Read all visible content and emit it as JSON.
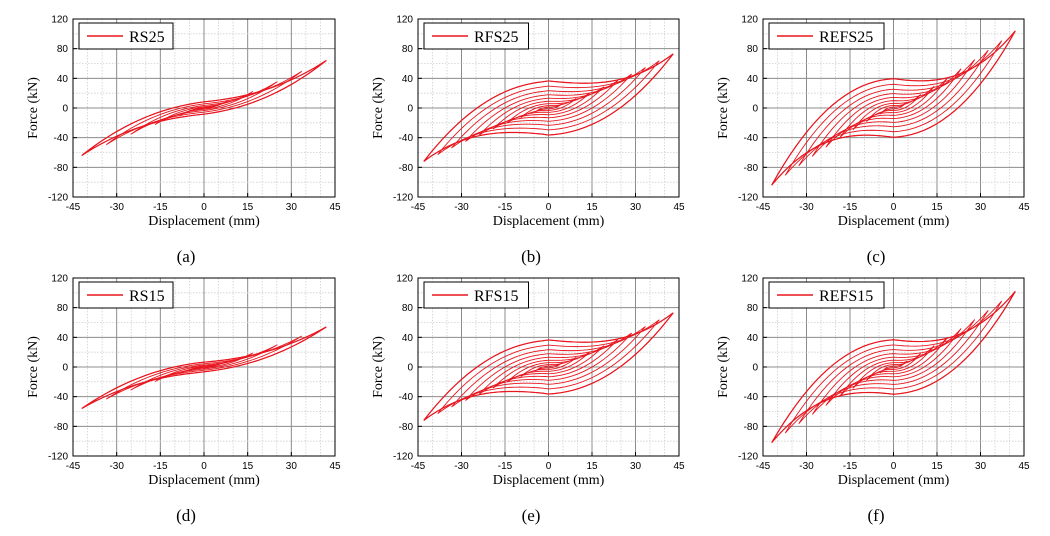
{
  "figure": {
    "panels": [
      {
        "caption": "(a)",
        "legend": "RS25"
      },
      {
        "caption": "(b)",
        "legend": "RFS25"
      },
      {
        "caption": "(c)",
        "legend": "REFS25"
      },
      {
        "caption": "(d)",
        "legend": "RS15"
      },
      {
        "caption": "(e)",
        "legend": "RFS15"
      },
      {
        "caption": "(f)",
        "legend": "REFS15"
      }
    ],
    "line_color": "#e8161f"
  },
  "chart_data": [
    {
      "type": "line",
      "legend": "RS25",
      "xlabel": "Displacement (mm)",
      "ylabel": "Force (kN)",
      "xlim": [
        -45,
        45
      ],
      "ylim": [
        -120,
        120
      ],
      "xticks": [
        -45,
        -30,
        -15,
        0,
        15,
        30,
        45
      ],
      "yticks": [
        -120,
        -80,
        -40,
        0,
        40,
        80,
        120
      ],
      "grid": true,
      "legend_position": "top-left",
      "series": [
        {
          "name": "RS25",
          "cycles": 5,
          "max_displacement": 42,
          "peak_force": 64,
          "min_displacement": -42,
          "min_force": -64,
          "stiff": 0.35,
          "pinch": 0.35,
          "loop_width": 0.13
        }
      ]
    },
    {
      "type": "line",
      "legend": "RFS25",
      "xlabel": "Displacement (mm)",
      "ylabel": "Force (kN)",
      "xlim": [
        -45,
        45
      ],
      "ylim": [
        -120,
        120
      ],
      "xticks": [
        -45,
        -30,
        -15,
        0,
        15,
        30,
        45
      ],
      "yticks": [
        -120,
        -80,
        -40,
        0,
        40,
        80,
        120
      ],
      "grid": true,
      "legend_position": "top-left",
      "series": [
        {
          "name": "RFS25",
          "cycles": 9,
          "max_displacement": 43,
          "peak_force": 73,
          "min_displacement": -43,
          "min_force": -72,
          "stiff": 0.15,
          "pinch": 0.25,
          "loop_width": 0.5
        }
      ]
    },
    {
      "type": "line",
      "legend": "REFS25",
      "xlabel": "Displacement (mm)",
      "ylabel": "Force (kN)",
      "xlim": [
        -45,
        45
      ],
      "ylim": [
        -120,
        120
      ],
      "xticks": [
        -45,
        -30,
        -15,
        0,
        15,
        30,
        45
      ],
      "yticks": [
        -120,
        -80,
        -40,
        0,
        40,
        80,
        120
      ],
      "grid": true,
      "legend_position": "top-left",
      "series": [
        {
          "name": "REFS25",
          "cycles": 9,
          "max_displacement": 42,
          "peak_force": 104,
          "min_displacement": -43,
          "min_force": -104,
          "stiff": 0.1,
          "pinch": 0.2,
          "loop_width": 0.38
        }
      ]
    },
    {
      "type": "line",
      "legend": "RS15",
      "xlabel": "Displacement (mm)",
      "ylabel": "Force (kN)",
      "xlim": [
        -45,
        45
      ],
      "ylim": [
        -120,
        120
      ],
      "xticks": [
        -45,
        -30,
        -15,
        0,
        15,
        30,
        45
      ],
      "yticks": [
        -120,
        -80,
        -40,
        0,
        40,
        80,
        120
      ],
      "grid": true,
      "legend_position": "top-left",
      "series": [
        {
          "name": "RS15",
          "cycles": 5,
          "max_displacement": 42,
          "peak_force": 54,
          "min_displacement": -43,
          "min_force": -56,
          "stiff": 0.35,
          "pinch": 0.35,
          "loop_width": 0.12
        }
      ]
    },
    {
      "type": "line",
      "legend": "RFS15",
      "xlabel": "Displacement (mm)",
      "ylabel": "Force (kN)",
      "xlim": [
        -45,
        45
      ],
      "ylim": [
        -120,
        120
      ],
      "xticks": [
        -45,
        -30,
        -15,
        0,
        15,
        30,
        45
      ],
      "yticks": [
        -120,
        -80,
        -40,
        0,
        40,
        80,
        120
      ],
      "grid": true,
      "legend_position": "top-left",
      "series": [
        {
          "name": "RFS15",
          "cycles": 9,
          "max_displacement": 43,
          "peak_force": 73,
          "min_displacement": -43,
          "min_force": -72,
          "stiff": 0.15,
          "pinch": 0.25,
          "loop_width": 0.5
        }
      ]
    },
    {
      "type": "line",
      "legend": "REFS15",
      "xlabel": "Displacement (mm)",
      "ylabel": "Force (kN)",
      "xlim": [
        -45,
        45
      ],
      "ylim": [
        -120,
        120
      ],
      "xticks": [
        -45,
        -30,
        -15,
        0,
        15,
        30,
        45
      ],
      "yticks": [
        -120,
        -80,
        -40,
        0,
        40,
        80,
        120
      ],
      "grid": true,
      "legend_position": "top-left",
      "series": [
        {
          "name": "REFS15",
          "cycles": 9,
          "max_displacement": 42,
          "peak_force": 102,
          "min_displacement": -43,
          "min_force": -102,
          "stiff": 0.1,
          "pinch": 0.2,
          "loop_width": 0.36
        }
      ]
    }
  ]
}
